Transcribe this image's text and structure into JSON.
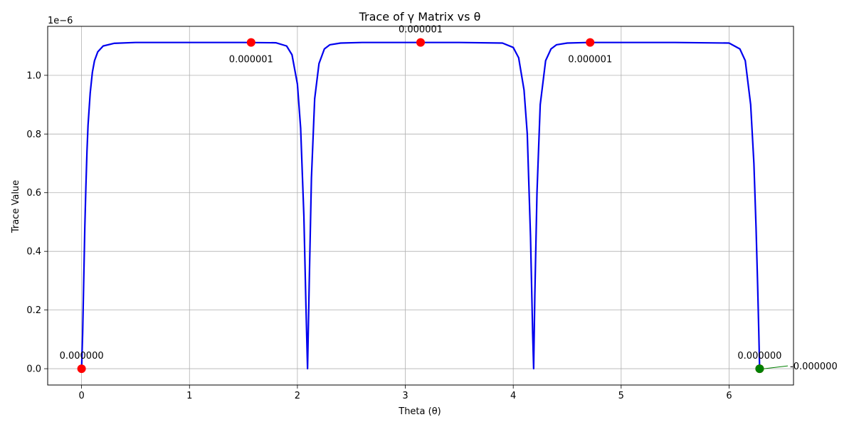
{
  "chart_data": {
    "type": "line",
    "title": "Trace of γ Matrix vs θ",
    "xlabel": "Theta (θ)",
    "ylabel": "Trace Value",
    "scale_label": "1e−6",
    "xlim": [
      -0.314,
      6.597
    ],
    "ylim": [
      -0.0556,
      1.167
    ],
    "x_ticks": [
      0,
      1,
      2,
      3,
      4,
      5,
      6
    ],
    "x_tick_labels": [
      "0",
      "1",
      "2",
      "3",
      "4",
      "5",
      "6"
    ],
    "y_ticks": [
      0.0,
      0.2,
      0.4,
      0.6,
      0.8,
      1.0
    ],
    "y_tick_labels": [
      "0.0",
      "0.2",
      "0.4",
      "0.6",
      "0.8",
      "1.0"
    ],
    "grid": true,
    "line_color": "#0000ee",
    "series": [
      {
        "values_note": "trace curve in units of 1e-6",
        "x": [
          0.0,
          0.01,
          0.02,
          0.03,
          0.04,
          0.05,
          0.06,
          0.08,
          0.1,
          0.12,
          0.15,
          0.2,
          0.3,
          0.5,
          1.0,
          1.5,
          1.8,
          1.9,
          1.95,
          2.0,
          2.03,
          2.06,
          2.08,
          2.094,
          2.11,
          2.13,
          2.16,
          2.2,
          2.25,
          2.3,
          2.4,
          2.6,
          3.0,
          3.5,
          3.9,
          4.0,
          4.05,
          4.1,
          4.13,
          4.16,
          4.18,
          4.189,
          4.2,
          4.22,
          4.25,
          4.3,
          4.35,
          4.4,
          4.5,
          4.7,
          5.0,
          5.5,
          6.0,
          6.1,
          6.15,
          6.2,
          6.23,
          6.25,
          6.265,
          6.275,
          6.283
        ],
        "y": [
          0.0,
          0.12,
          0.3,
          0.48,
          0.62,
          0.74,
          0.83,
          0.94,
          1.01,
          1.05,
          1.08,
          1.1,
          1.109,
          1.112,
          1.112,
          1.112,
          1.111,
          1.1,
          1.07,
          0.97,
          0.82,
          0.52,
          0.2,
          0.0,
          0.3,
          0.65,
          0.92,
          1.04,
          1.09,
          1.104,
          1.11,
          1.112,
          1.112,
          1.112,
          1.11,
          1.095,
          1.06,
          0.95,
          0.8,
          0.45,
          0.12,
          0.0,
          0.25,
          0.6,
          0.9,
          1.05,
          1.09,
          1.104,
          1.11,
          1.112,
          1.112,
          1.112,
          1.11,
          1.09,
          1.05,
          0.9,
          0.7,
          0.48,
          0.28,
          0.13,
          0.0
        ]
      }
    ],
    "points": [
      {
        "x": 0.0,
        "y": 0.0,
        "color": "#ff0000",
        "label": "0.000000",
        "label_pos": "above"
      },
      {
        "x": 1.5708,
        "y": 1.112,
        "color": "#ff0000",
        "label": "0.000001",
        "label_pos": "below"
      },
      {
        "x": 3.1416,
        "y": 1.112,
        "color": "#ff0000",
        "label": "0.000001",
        "label_pos": "above"
      },
      {
        "x": 4.7124,
        "y": 1.112,
        "color": "#ff0000",
        "label": "0.000001",
        "label_pos": "below"
      },
      {
        "x": 6.2832,
        "y": 0.0,
        "color": "#ff0000",
        "label": "0.000000",
        "label_pos": "above"
      },
      {
        "x": 6.2832,
        "y": 0.0,
        "color": "#008000",
        "label": "-0.000000",
        "label_pos": "right-arrow"
      }
    ]
  }
}
